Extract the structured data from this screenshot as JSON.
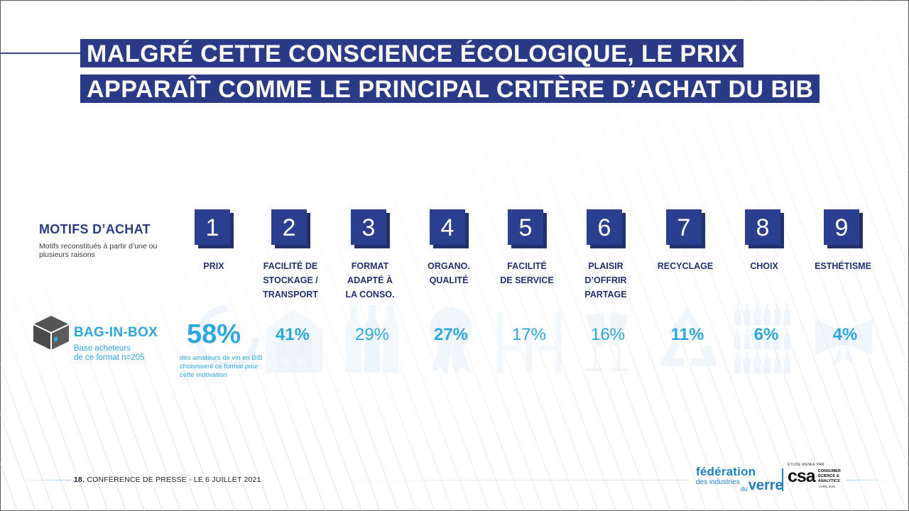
{
  "title": {
    "line1": "MALGRÉ CETTE CONSCIENCE ÉCOLOGIQUE, LE PRIX",
    "line2": "APPARAÎT COMME LE PRINCIPAL CRITÈRE D’ACHAT DU BIB"
  },
  "motifs": {
    "heading": "MOTIFS D’ACHAT",
    "subtitle": "Motifs reconstitués à partir d’une ou plusieurs raisons"
  },
  "segment": {
    "icon": "bag-in-box-cube-icon",
    "title": "BAG-IN-BOX",
    "subtitle_line1": "Base acheteurs",
    "subtitle_line2": "de ce format n=205"
  },
  "criteria": [
    {
      "rank": "1",
      "label_lines": [
        "PRIX"
      ],
      "percent": "58%",
      "icon": "piggy-bank-icon"
    },
    {
      "rank": "2",
      "label_lines": [
        "FACILITÉ DE",
        "STOCKAGE /",
        "TRANSPORT"
      ],
      "percent": "41%",
      "icon": "garage-icon"
    },
    {
      "rank": "3",
      "label_lines": [
        "FORMAT",
        "ADAPTÉ À",
        "LA CONSO."
      ],
      "percent": "29%",
      "icon": "bottles-icon"
    },
    {
      "rank": "4",
      "label_lines": [
        "ORGANO.",
        "QUALITÉ"
      ],
      "percent": "27%",
      "icon": "award-ribbon-icon"
    },
    {
      "rank": "5",
      "label_lines": [
        "FACILITÉ",
        "DE SERVICE"
      ],
      "percent": "17%",
      "icon": "table-chairs-icon"
    },
    {
      "rank": "6",
      "label_lines": [
        "PLAISIR",
        "D’OFFRIR",
        "PARTAGE"
      ],
      "percent": "16%",
      "icon": "champagne-toast-icon"
    },
    {
      "rank": "7",
      "label_lines": [
        "RECYCLAGE"
      ],
      "percent": "11%",
      "icon": "recycle-icon"
    },
    {
      "rank": "8",
      "label_lines": [
        "CHOIX"
      ],
      "percent": "6%",
      "icon": "bottle-grid-icon"
    },
    {
      "rank": "9",
      "label_lines": [
        "ESTHÉTISME"
      ],
      "percent": "4%",
      "icon": "bow-icon"
    }
  ],
  "first_note": "des amateurs de vin en BIB choisissent ce format pour cette motivation",
  "footer": {
    "page_number": "18.",
    "text": "CONFÉRENCE DE PRESSE - LE 6 JUILLET 2021"
  },
  "logos": {
    "federation_line1": "fédération",
    "federation_line2": "des industries",
    "federation_du": "du",
    "federation_verre": "verre",
    "csa_caption": "ÉTUDE MENÉE PAR",
    "csa_mark": "csa",
    "csa_side_line1": "CONSUMER",
    "csa_side_line2": "SCIENCE &",
    "csa_side_line3": "ANALYTICS",
    "csa_date": "AVRIL 2021"
  },
  "colors": {
    "navy": "#2b3a87",
    "badge": "#2b3f90",
    "accent_blue": "#2ea6df",
    "label_navy": "#22306b"
  }
}
